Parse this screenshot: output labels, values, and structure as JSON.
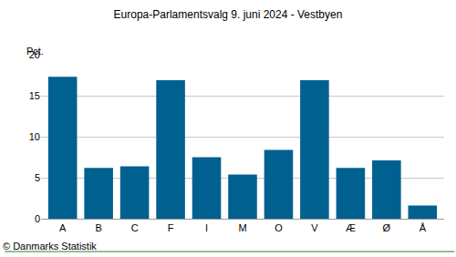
{
  "chart_data": {
    "type": "bar",
    "title": "Europa-Parlamentsvalg 9. juni 2024 - Vestbyen",
    "ylabel": "Pct.",
    "source": "© Danmarks Statistik",
    "categories": [
      "A",
      "B",
      "C",
      "F",
      "I",
      "M",
      "O",
      "V",
      "Æ",
      "Ø",
      "Å"
    ],
    "values": [
      17.3,
      6.2,
      6.4,
      16.9,
      7.5,
      5.4,
      8.4,
      16.9,
      6.2,
      7.1,
      1.6
    ],
    "color": "#00608f",
    "ylim": [
      0,
      20
    ],
    "yticks": [
      0,
      5,
      10,
      15,
      20
    ],
    "grid": true
  }
}
